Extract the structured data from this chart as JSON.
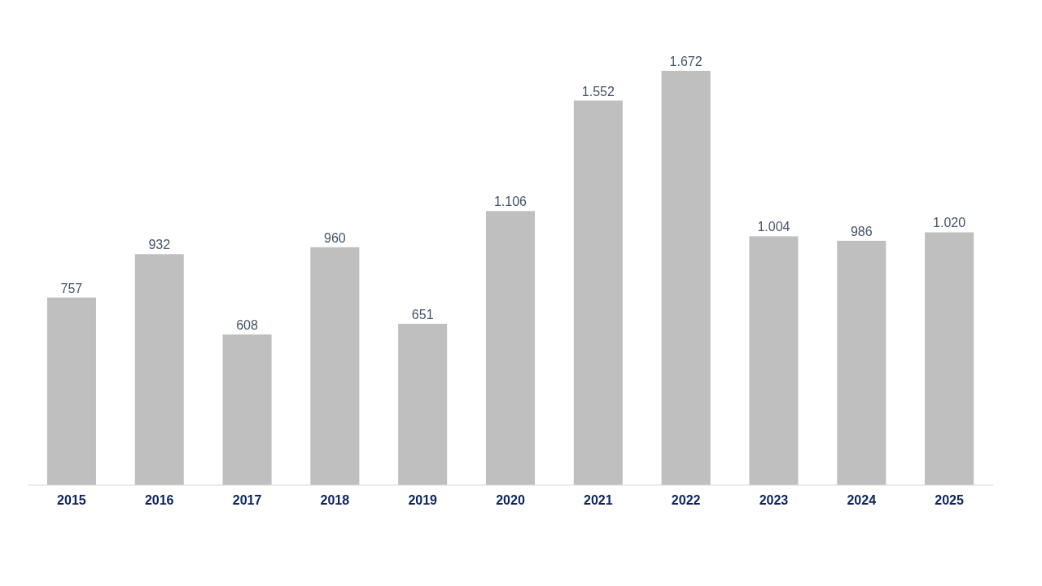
{
  "chart_data": {
    "type": "bar",
    "categories": [
      "2015",
      "2016",
      "2017",
      "2018",
      "2019",
      "2020",
      "2021",
      "2022",
      "2023",
      "2024",
      "2025"
    ],
    "values": [
      757,
      932,
      608,
      960,
      651,
      1106,
      1552,
      1672,
      1004,
      986,
      1020
    ],
    "value_labels": [
      "757",
      "932",
      "608",
      "960",
      "651",
      "1.106",
      "1.552",
      "1.672",
      "1.004",
      "986",
      "1.020"
    ],
    "color": "#bfbfbf"
  }
}
